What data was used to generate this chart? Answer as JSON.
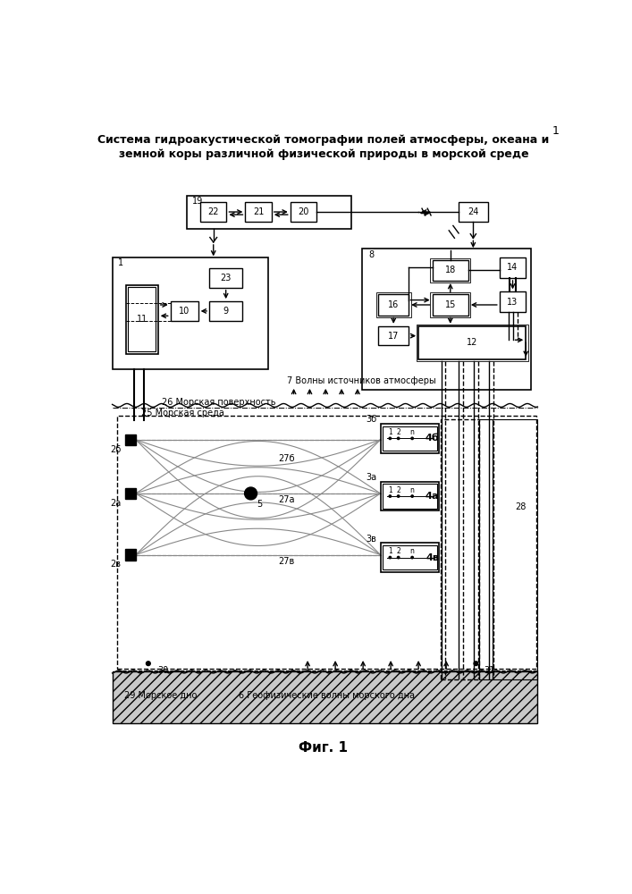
{
  "title_line1": "Система гидроакустической томографии полей атмосферы, океана и",
  "title_line2": "земной коры различной физической природы в морской среде",
  "fig_caption": "Фиг. 1",
  "page_number": "1",
  "bg_color": "#ffffff"
}
